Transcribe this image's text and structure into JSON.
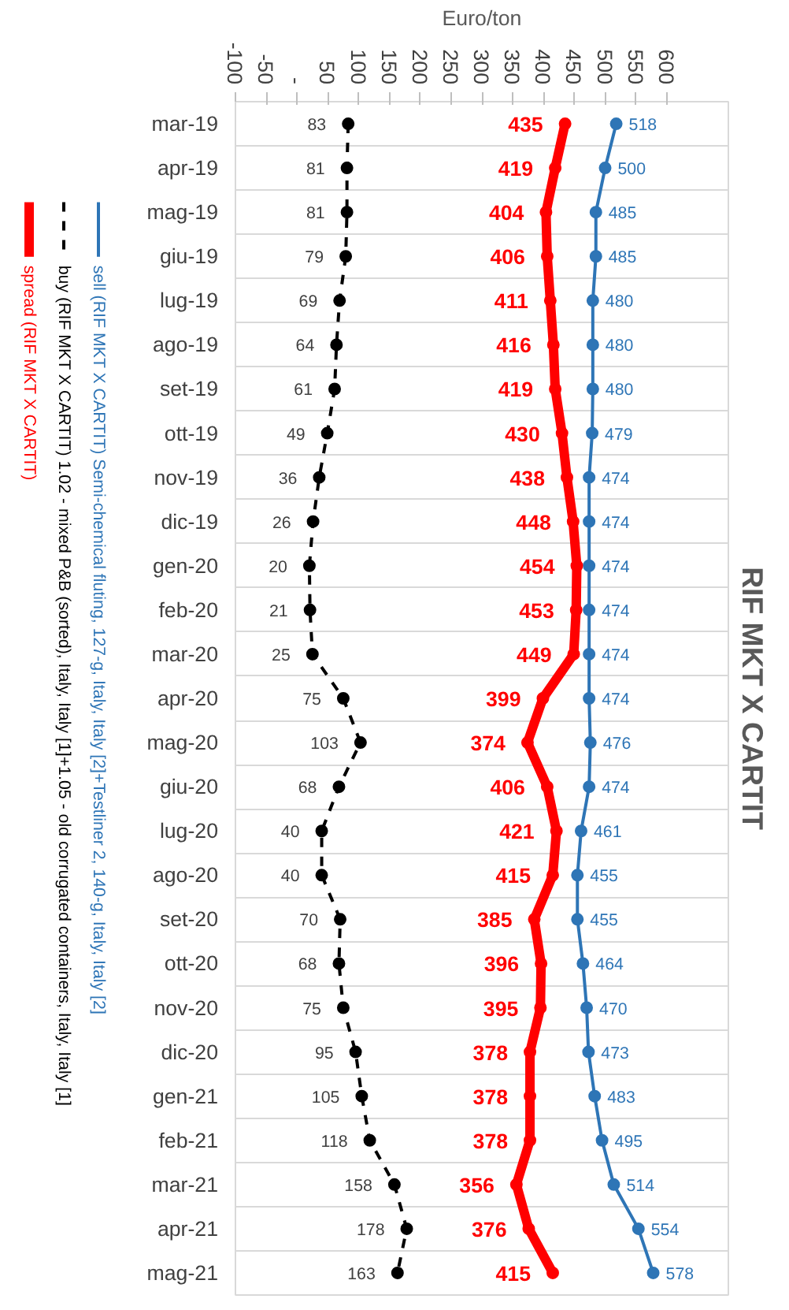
{
  "chart_data": {
    "type": "line",
    "title": "RIF MKT X CARTIT",
    "xlabel": "Euro/ton",
    "orientation": "horizontal",
    "categories": [
      "mar-19",
      "apr-19",
      "mag-19",
      "giu-19",
      "lug-19",
      "ago-19",
      "set-19",
      "ott-19",
      "nov-19",
      "dic-19",
      "gen-20",
      "feb-20",
      "mar-20",
      "apr-20",
      "mag-20",
      "giu-20",
      "lug-20",
      "ago-20",
      "set-20",
      "ott-20",
      "nov-20",
      "dic-20",
      "gen-21",
      "feb-21",
      "mar-21",
      "apr-21",
      "mag-21"
    ],
    "series": [
      {
        "name": "sell (RIF MKT X CARTIT) Semi-chemical fluting, 127-g, Italy,  Italy [2]+Testliner 2, 140-g, Italy,  Italy [2]",
        "color": "#2e75b6",
        "marker": "circle",
        "line_style": "solid",
        "values": [
          518,
          500,
          485,
          485,
          480,
          480,
          480,
          479,
          474,
          474,
          474,
          474,
          474,
          474,
          476,
          474,
          461,
          455,
          455,
          464,
          470,
          473,
          483,
          495,
          514,
          554,
          578
        ]
      },
      {
        "name": "buy (RIF MKT X CARTIT) 1.02 - mixed P&B (sorted), Italy,  Italy [1]+1.05 - old corrugated containers, Italy,  Italy [1]",
        "color": "#000000",
        "marker": "circle",
        "line_style": "dashed",
        "values": [
          83,
          81,
          81,
          79,
          69,
          64,
          61,
          49,
          36,
          26,
          20,
          21,
          25,
          75,
          103,
          68,
          40,
          40,
          70,
          68,
          75,
          95,
          105,
          118,
          158,
          178,
          163
        ]
      },
      {
        "name": "spread (RIF MKT X CARTIT)",
        "color": "#ff0000",
        "marker": "circle",
        "line_style": "solid",
        "values": [
          435,
          419,
          404,
          406,
          411,
          416,
          419,
          430,
          438,
          448,
          454,
          453,
          449,
          399,
          374,
          406,
          421,
          415,
          385,
          396,
          395,
          378,
          378,
          378,
          356,
          376,
          415
        ]
      }
    ],
    "xlim": [
      -100,
      700
    ],
    "xticks": [
      -100,
      -50,
      {
        "value": 0,
        "label": "-"
      },
      50,
      100,
      150,
      200,
      250,
      300,
      350,
      400,
      450,
      500,
      550,
      600
    ],
    "grid": "y",
    "legend": "left",
    "data_labels": true
  }
}
